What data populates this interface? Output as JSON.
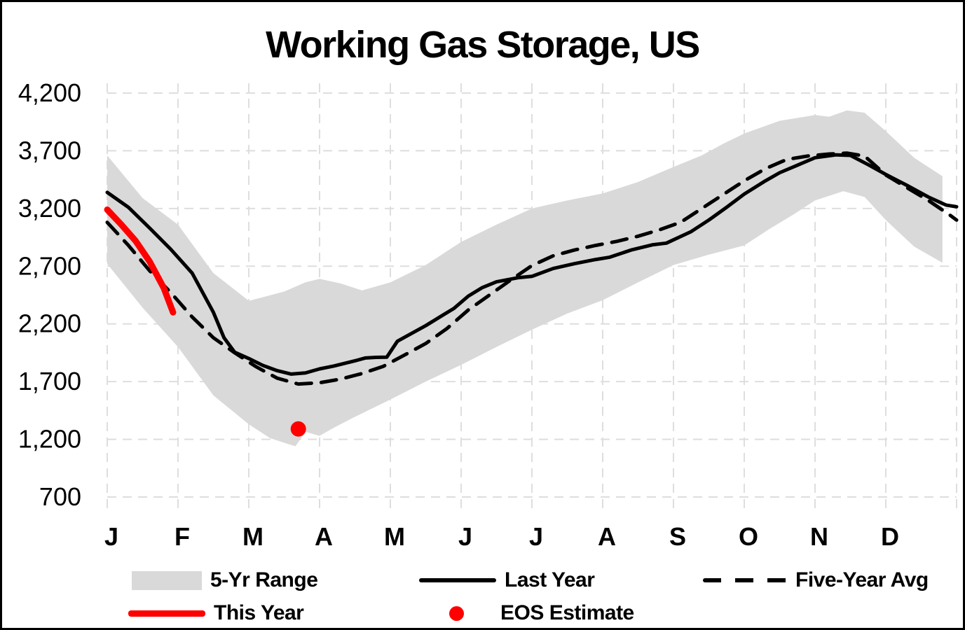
{
  "chart": {
    "title": "Working Gas Storage, US"
  },
  "colors": {
    "band": "#d9d9d9",
    "line_black": "#000000",
    "line_red": "#ff0000",
    "grid": "#dedede"
  },
  "legend": {
    "row1": [
      {
        "label": "5-Yr Range"
      },
      {
        "label": "Last Year"
      },
      {
        "label": "Five-Year Avg"
      }
    ],
    "row2": [
      {
        "label": "This Year"
      },
      {
        "label": "EOS Estimate"
      }
    ]
  },
  "chart_data": {
    "type": "area+line",
    "title": "Working Gas Storage, US",
    "x_labels": [
      "J",
      "F",
      "M",
      "A",
      "M",
      "J",
      "J",
      "A",
      "S",
      "O",
      "N",
      "D"
    ],
    "x_unit": "months, 0 = Jan 1 .. 12 = year end",
    "ylim": [
      700,
      4200
    ],
    "yticks": [
      700,
      1200,
      1700,
      2200,
      2700,
      3200,
      3700,
      4200
    ],
    "grid": true,
    "legend_position": "bottom",
    "series": [
      {
        "name": "5-Yr Range",
        "type": "band",
        "color": "#d9d9d9",
        "top": [
          [
            0,
            3660
          ],
          [
            0.5,
            3290
          ],
          [
            1,
            3060
          ],
          [
            1.5,
            2640
          ],
          [
            2,
            2400
          ],
          [
            2.5,
            2480
          ],
          [
            2.8,
            2560
          ],
          [
            3,
            2590
          ],
          [
            3.3,
            2550
          ],
          [
            3.6,
            2490
          ],
          [
            4,
            2560
          ],
          [
            4.5,
            2710
          ],
          [
            5,
            2910
          ],
          [
            5.5,
            3060
          ],
          [
            6,
            3200
          ],
          [
            6.5,
            3270
          ],
          [
            7,
            3330
          ],
          [
            7.5,
            3430
          ],
          [
            8,
            3560
          ],
          [
            8.4,
            3660
          ],
          [
            8.7,
            3760
          ],
          [
            9,
            3850
          ],
          [
            9.5,
            3960
          ],
          [
            9.8,
            3990
          ],
          [
            10,
            4010
          ],
          [
            10.2,
            3995
          ],
          [
            10.45,
            4050
          ],
          [
            10.7,
            4030
          ],
          [
            11,
            3870
          ],
          [
            11.4,
            3640
          ],
          [
            11.8,
            3480
          ]
        ],
        "bottom": [
          [
            0,
            2720
          ],
          [
            0.5,
            2340
          ],
          [
            1,
            2000
          ],
          [
            1.5,
            1580
          ],
          [
            2,
            1330
          ],
          [
            2.3,
            1210
          ],
          [
            2.55,
            1160
          ],
          [
            2.66,
            1140
          ],
          [
            2.8,
            1265
          ],
          [
            3,
            1230
          ],
          [
            3.2,
            1300
          ],
          [
            3.5,
            1395
          ],
          [
            4,
            1545
          ],
          [
            4.5,
            1700
          ],
          [
            5,
            1845
          ],
          [
            5.5,
            2000
          ],
          [
            6,
            2150
          ],
          [
            6.5,
            2290
          ],
          [
            7,
            2405
          ],
          [
            7.5,
            2560
          ],
          [
            8,
            2710
          ],
          [
            8.5,
            2800
          ],
          [
            9,
            2880
          ],
          [
            9.35,
            3020
          ],
          [
            9.7,
            3150
          ],
          [
            10,
            3270
          ],
          [
            10.4,
            3350
          ],
          [
            10.7,
            3300
          ],
          [
            11,
            3100
          ],
          [
            11.4,
            2870
          ],
          [
            11.8,
            2730
          ]
        ]
      },
      {
        "name": "Last Year",
        "type": "line",
        "style": "solid",
        "color": "#000000",
        "width": 5,
        "points": [
          [
            0,
            3340
          ],
          [
            0.3,
            3210
          ],
          [
            0.6,
            3030
          ],
          [
            0.9,
            2845
          ],
          [
            1.2,
            2640
          ],
          [
            1.5,
            2300
          ],
          [
            1.65,
            2080
          ],
          [
            1.8,
            1955
          ],
          [
            2,
            1900
          ],
          [
            2.2,
            1840
          ],
          [
            2.4,
            1795
          ],
          [
            2.6,
            1765
          ],
          [
            2.8,
            1775
          ],
          [
            3,
            1810
          ],
          [
            3.2,
            1835
          ],
          [
            3.5,
            1880
          ],
          [
            3.65,
            1905
          ],
          [
            3.8,
            1910
          ],
          [
            3.95,
            1912
          ],
          [
            4.1,
            2050
          ],
          [
            4.5,
            2185
          ],
          [
            4.9,
            2335
          ],
          [
            5.1,
            2440
          ],
          [
            5.3,
            2515
          ],
          [
            5.5,
            2565
          ],
          [
            5.8,
            2600
          ],
          [
            6,
            2612
          ],
          [
            6.3,
            2680
          ],
          [
            6.6,
            2722
          ],
          [
            6.9,
            2758
          ],
          [
            7.1,
            2778
          ],
          [
            7.4,
            2840
          ],
          [
            7.7,
            2885
          ],
          [
            7.9,
            2900
          ],
          [
            8.25,
            3000
          ],
          [
            8.5,
            3100
          ],
          [
            8.75,
            3210
          ],
          [
            9,
            3325
          ],
          [
            9.3,
            3440
          ],
          [
            9.5,
            3510
          ],
          [
            9.75,
            3575
          ],
          [
            10,
            3640
          ],
          [
            10.3,
            3665
          ],
          [
            10.5,
            3660
          ],
          [
            10.75,
            3580
          ],
          [
            11,
            3495
          ],
          [
            11.3,
            3400
          ],
          [
            11.6,
            3300
          ],
          [
            11.85,
            3230
          ],
          [
            12,
            3215
          ]
        ]
      },
      {
        "name": "Five-Year Avg",
        "type": "line",
        "style": "dashed",
        "color": "#000000",
        "width": 5,
        "points": [
          [
            0,
            3080
          ],
          [
            0.3,
            2880
          ],
          [
            0.6,
            2660
          ],
          [
            0.9,
            2470
          ],
          [
            1.2,
            2260
          ],
          [
            1.5,
            2080
          ],
          [
            1.8,
            1950
          ],
          [
            2.1,
            1830
          ],
          [
            2.4,
            1730
          ],
          [
            2.7,
            1679
          ],
          [
            3,
            1690
          ],
          [
            3.3,
            1722
          ],
          [
            3.6,
            1770
          ],
          [
            3.9,
            1832
          ],
          [
            4.2,
            1930
          ],
          [
            4.5,
            2030
          ],
          [
            4.8,
            2160
          ],
          [
            5.1,
            2320
          ],
          [
            5.4,
            2450
          ],
          [
            5.7,
            2580
          ],
          [
            6,
            2705
          ],
          [
            6.3,
            2790
          ],
          [
            6.6,
            2840
          ],
          [
            6.9,
            2880
          ],
          [
            7.2,
            2915
          ],
          [
            7.5,
            2960
          ],
          [
            7.8,
            3015
          ],
          [
            8.1,
            3080
          ],
          [
            8.4,
            3200
          ],
          [
            8.7,
            3320
          ],
          [
            9,
            3440
          ],
          [
            9.3,
            3545
          ],
          [
            9.6,
            3625
          ],
          [
            9.9,
            3655
          ],
          [
            10.2,
            3672
          ],
          [
            10.45,
            3680
          ],
          [
            10.7,
            3655
          ],
          [
            11,
            3490
          ],
          [
            11.3,
            3380
          ],
          [
            11.6,
            3270
          ],
          [
            11.9,
            3145
          ],
          [
            12,
            3100
          ]
        ]
      },
      {
        "name": "This Year",
        "type": "line",
        "style": "solid",
        "color": "#ff0000",
        "width": 9,
        "points": [
          [
            0,
            3190
          ],
          [
            0.2,
            3060
          ],
          [
            0.4,
            2920
          ],
          [
            0.6,
            2740
          ],
          [
            0.8,
            2510
          ],
          [
            0.93,
            2300
          ]
        ]
      },
      {
        "name": "EOS Estimate",
        "type": "point",
        "color": "#ff0000",
        "x": 2.7,
        "value": 1290,
        "radius": 11
      }
    ]
  }
}
